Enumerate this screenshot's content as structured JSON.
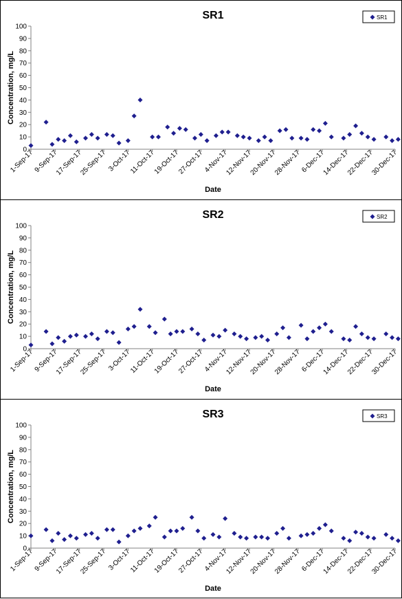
{
  "colors": {
    "marker": "#1f1f8f",
    "axis": "#808080",
    "border": "#000000"
  },
  "chart_data": [
    {
      "type": "scatter",
      "title": "SR1",
      "xlabel": "Date",
      "ylabel": "Concentration, mg/L",
      "ylim": [
        0,
        100
      ],
      "yticks": [
        "0",
        "10",
        "20",
        "30",
        "40",
        "50",
        "60",
        "70",
        "80",
        "90",
        "100"
      ],
      "xticks": [
        "1-Sep-17",
        "9-Sep-17",
        "17-Sep-17",
        "25-Sep-17",
        "3-Oct-17",
        "11-Oct-17",
        "19-Oct-17",
        "27-Oct-17",
        "4-Nov-17",
        "12-Nov-17",
        "20-Nov-17",
        "28-Nov-17",
        "6-Dec-17",
        "14-Dec-17",
        "22-Dec-17",
        "30-Dec-17"
      ],
      "grid": false,
      "legend_position": "top-right",
      "series": [
        {
          "name": "SR1",
          "points": [
            [
              "1-Sep-17",
              3
            ],
            [
              "6-Sep-17",
              22
            ],
            [
              "8-Sep-17",
              4
            ],
            [
              "10-Sep-17",
              8
            ],
            [
              "12-Sep-17",
              7
            ],
            [
              "14-Sep-17",
              11
            ],
            [
              "16-Sep-17",
              6
            ],
            [
              "19-Sep-17",
              9
            ],
            [
              "21-Sep-17",
              12
            ],
            [
              "23-Sep-17",
              9
            ],
            [
              "26-Sep-17",
              12
            ],
            [
              "28-Sep-17",
              11
            ],
            [
              "30-Sep-17",
              5
            ],
            [
              "3-Oct-17",
              7
            ],
            [
              "5-Oct-17",
              27
            ],
            [
              "7-Oct-17",
              40
            ],
            [
              "11-Oct-17",
              10
            ],
            [
              "13-Oct-17",
              10
            ],
            [
              "16-Oct-17",
              18
            ],
            [
              "18-Oct-17",
              13
            ],
            [
              "20-Oct-17",
              17
            ],
            [
              "22-Oct-17",
              16
            ],
            [
              "25-Oct-17",
              9
            ],
            [
              "27-Oct-17",
              12
            ],
            [
              "29-Oct-17",
              7
            ],
            [
              "1-Nov-17",
              11
            ],
            [
              "3-Nov-17",
              14
            ],
            [
              "5-Nov-17",
              14
            ],
            [
              "8-Nov-17",
              11
            ],
            [
              "10-Nov-17",
              10
            ],
            [
              "12-Nov-17",
              9
            ],
            [
              "15-Nov-17",
              7
            ],
            [
              "17-Nov-17",
              10
            ],
            [
              "19-Nov-17",
              7
            ],
            [
              "22-Nov-17",
              15
            ],
            [
              "24-Nov-17",
              16
            ],
            [
              "26-Nov-17",
              9
            ],
            [
              "29-Nov-17",
              9
            ],
            [
              "1-Dec-17",
              8
            ],
            [
              "3-Dec-17",
              16
            ],
            [
              "5-Dec-17",
              15
            ],
            [
              "7-Dec-17",
              21
            ],
            [
              "9-Dec-17",
              10
            ],
            [
              "13-Dec-17",
              9
            ],
            [
              "15-Dec-17",
              12
            ],
            [
              "17-Dec-17",
              19
            ],
            [
              "19-Dec-17",
              13
            ],
            [
              "21-Dec-17",
              10
            ],
            [
              "23-Dec-17",
              8
            ],
            [
              "27-Dec-17",
              10
            ],
            [
              "29-Dec-17",
              7
            ],
            [
              "31-Dec-17",
              8
            ]
          ]
        }
      ]
    },
    {
      "type": "scatter",
      "title": "SR2",
      "xlabel": "Date",
      "ylabel": "Concentration, mg/L",
      "ylim": [
        0,
        100
      ],
      "yticks": [
        "0",
        "10",
        "20",
        "30",
        "40",
        "50",
        "60",
        "70",
        "80",
        "90",
        "100"
      ],
      "xticks": [
        "1-Sep-17",
        "9-Sep-17",
        "17-Sep-17",
        "25-Sep-17",
        "3-Oct-17",
        "11-Oct-17",
        "19-Oct-17",
        "27-Oct-17",
        "4-Nov-17",
        "12-Nov-17",
        "20-Nov-17",
        "28-Nov-17",
        "6-Dec-17",
        "14-Dec-17",
        "22-Dec-17",
        "30-Dec-17"
      ],
      "grid": false,
      "legend_position": "top-right",
      "series": [
        {
          "name": "SR2",
          "points": [
            [
              "1-Sep-17",
              3
            ],
            [
              "6-Sep-17",
              14
            ],
            [
              "8-Sep-17",
              4
            ],
            [
              "10-Sep-17",
              9
            ],
            [
              "12-Sep-17",
              6
            ],
            [
              "14-Sep-17",
              10
            ],
            [
              "16-Sep-17",
              11
            ],
            [
              "19-Sep-17",
              10
            ],
            [
              "21-Sep-17",
              12
            ],
            [
              "23-Sep-17",
              8
            ],
            [
              "26-Sep-17",
              14
            ],
            [
              "28-Sep-17",
              13
            ],
            [
              "30-Sep-17",
              5
            ],
            [
              "3-Oct-17",
              16
            ],
            [
              "5-Oct-17",
              18
            ],
            [
              "7-Oct-17",
              32
            ],
            [
              "10-Oct-17",
              18
            ],
            [
              "12-Oct-17",
              13
            ],
            [
              "15-Oct-17",
              24
            ],
            [
              "17-Oct-17",
              12
            ],
            [
              "19-Oct-17",
              14
            ],
            [
              "21-Oct-17",
              14
            ],
            [
              "24-Oct-17",
              16
            ],
            [
              "26-Oct-17",
              12
            ],
            [
              "28-Oct-17",
              7
            ],
            [
              "31-Oct-17",
              11
            ],
            [
              "2-Nov-17",
              10
            ],
            [
              "4-Nov-17",
              15
            ],
            [
              "7-Nov-17",
              12
            ],
            [
              "9-Nov-17",
              10
            ],
            [
              "11-Nov-17",
              8
            ],
            [
              "14-Nov-17",
              9
            ],
            [
              "16-Nov-17",
              10
            ],
            [
              "18-Nov-17",
              7
            ],
            [
              "21-Nov-17",
              12
            ],
            [
              "23-Nov-17",
              17
            ],
            [
              "25-Nov-17",
              9
            ],
            [
              "29-Nov-17",
              19
            ],
            [
              "1-Dec-17",
              8
            ],
            [
              "3-Dec-17",
              14
            ],
            [
              "5-Dec-17",
              17
            ],
            [
              "7-Dec-17",
              20
            ],
            [
              "9-Dec-17",
              14
            ],
            [
              "13-Dec-17",
              8
            ],
            [
              "15-Dec-17",
              7
            ],
            [
              "17-Dec-17",
              18
            ],
            [
              "19-Dec-17",
              12
            ],
            [
              "21-Dec-17",
              9
            ],
            [
              "23-Dec-17",
              8
            ],
            [
              "27-Dec-17",
              12
            ],
            [
              "29-Dec-17",
              9
            ],
            [
              "31-Dec-17",
              8
            ]
          ]
        }
      ]
    },
    {
      "type": "scatter",
      "title": "SR3",
      "xlabel": "Date",
      "ylabel": "Concentration, mg/L",
      "ylim": [
        0,
        100
      ],
      "yticks": [
        "0",
        "10",
        "20",
        "30",
        "40",
        "50",
        "60",
        "70",
        "80",
        "90",
        "100"
      ],
      "xticks": [
        "1-Sep-17",
        "9-Sep-17",
        "17-Sep-17",
        "25-Sep-17",
        "3-Oct-17",
        "11-Oct-17",
        "19-Oct-17",
        "27-Oct-17",
        "4-Nov-17",
        "12-Nov-17",
        "20-Nov-17",
        "28-Nov-17",
        "6-Dec-17",
        "14-Dec-17",
        "22-Dec-17",
        "30-Dec-17"
      ],
      "grid": false,
      "legend_position": "top-right",
      "series": [
        {
          "name": "SR3",
          "points": [
            [
              "1-Sep-17",
              10
            ],
            [
              "6-Sep-17",
              15
            ],
            [
              "8-Sep-17",
              6
            ],
            [
              "10-Sep-17",
              12
            ],
            [
              "12-Sep-17",
              7
            ],
            [
              "14-Sep-17",
              10
            ],
            [
              "16-Sep-17",
              8
            ],
            [
              "19-Sep-17",
              11
            ],
            [
              "21-Sep-17",
              12
            ],
            [
              "23-Sep-17",
              8
            ],
            [
              "26-Sep-17",
              15
            ],
            [
              "28-Sep-17",
              15
            ],
            [
              "30-Sep-17",
              5
            ],
            [
              "3-Oct-17",
              10
            ],
            [
              "5-Oct-17",
              14
            ],
            [
              "7-Oct-17",
              16
            ],
            [
              "10-Oct-17",
              18
            ],
            [
              "12-Oct-17",
              25
            ],
            [
              "15-Oct-17",
              9
            ],
            [
              "17-Oct-17",
              14
            ],
            [
              "19-Oct-17",
              14
            ],
            [
              "21-Oct-17",
              16
            ],
            [
              "24-Oct-17",
              25
            ],
            [
              "26-Oct-17",
              14
            ],
            [
              "28-Oct-17",
              8
            ],
            [
              "31-Oct-17",
              11
            ],
            [
              "2-Nov-17",
              9
            ],
            [
              "4-Nov-17",
              24
            ],
            [
              "7-Nov-17",
              12
            ],
            [
              "9-Nov-17",
              9
            ],
            [
              "11-Nov-17",
              8
            ],
            [
              "14-Nov-17",
              9
            ],
            [
              "16-Nov-17",
              9
            ],
            [
              "18-Nov-17",
              8
            ],
            [
              "21-Nov-17",
              12
            ],
            [
              "23-Nov-17",
              16
            ],
            [
              "25-Nov-17",
              8
            ],
            [
              "29-Nov-17",
              10
            ],
            [
              "1-Dec-17",
              11
            ],
            [
              "3-Dec-17",
              12
            ],
            [
              "5-Dec-17",
              16
            ],
            [
              "7-Dec-17",
              19
            ],
            [
              "9-Dec-17",
              14
            ],
            [
              "13-Dec-17",
              8
            ],
            [
              "15-Dec-17",
              6
            ],
            [
              "17-Dec-17",
              13
            ],
            [
              "19-Dec-17",
              12
            ],
            [
              "21-Dec-17",
              9
            ],
            [
              "23-Dec-17",
              8
            ],
            [
              "27-Dec-17",
              11
            ],
            [
              "29-Dec-17",
              8
            ],
            [
              "31-Dec-17",
              6
            ]
          ]
        }
      ]
    }
  ]
}
